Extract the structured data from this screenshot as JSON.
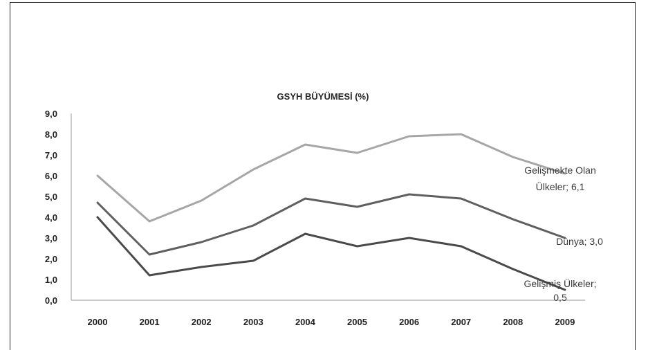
{
  "chart_data": {
    "type": "line",
    "title": "GSYH BÜYÜMESİ (%)",
    "xlabel": "",
    "ylabel": "",
    "x": [
      "2000",
      "2001",
      "2002",
      "2003",
      "2004",
      "2005",
      "2006",
      "2007",
      "2008",
      "2009"
    ],
    "ylim": [
      0,
      9
    ],
    "yticks": [
      "0,0",
      "1,0",
      "2,0",
      "3,0",
      "4,0",
      "5,0",
      "6,0",
      "7,0",
      "8,0",
      "9,0"
    ],
    "grid": false,
    "series": [
      {
        "name": "Gelişmekte Olan Ülkeler",
        "color": "#a6a6a6",
        "values": [
          6.0,
          3.8,
          4.8,
          6.3,
          7.5,
          7.1,
          7.9,
          8.0,
          6.9,
          6.1
        ],
        "label_lines": [
          "Gelişmekte Olan",
          "Ülkeler; 6,1"
        ]
      },
      {
        "name": "Dünya",
        "color": "#5f5f5f",
        "values": [
          4.7,
          2.2,
          2.8,
          3.6,
          4.9,
          4.5,
          5.1,
          4.9,
          3.9,
          3.0
        ],
        "label_lines": [
          "Dünya; 3,0"
        ]
      },
      {
        "name": "Gelişmiş Ülkeler",
        "color": "#4a4a4a",
        "values": [
          4.0,
          1.2,
          1.6,
          1.9,
          3.2,
          2.6,
          3.0,
          2.6,
          1.5,
          0.5
        ],
        "label_lines": [
          "Gelişmiş Ülkeler;",
          "0,5"
        ]
      }
    ]
  }
}
